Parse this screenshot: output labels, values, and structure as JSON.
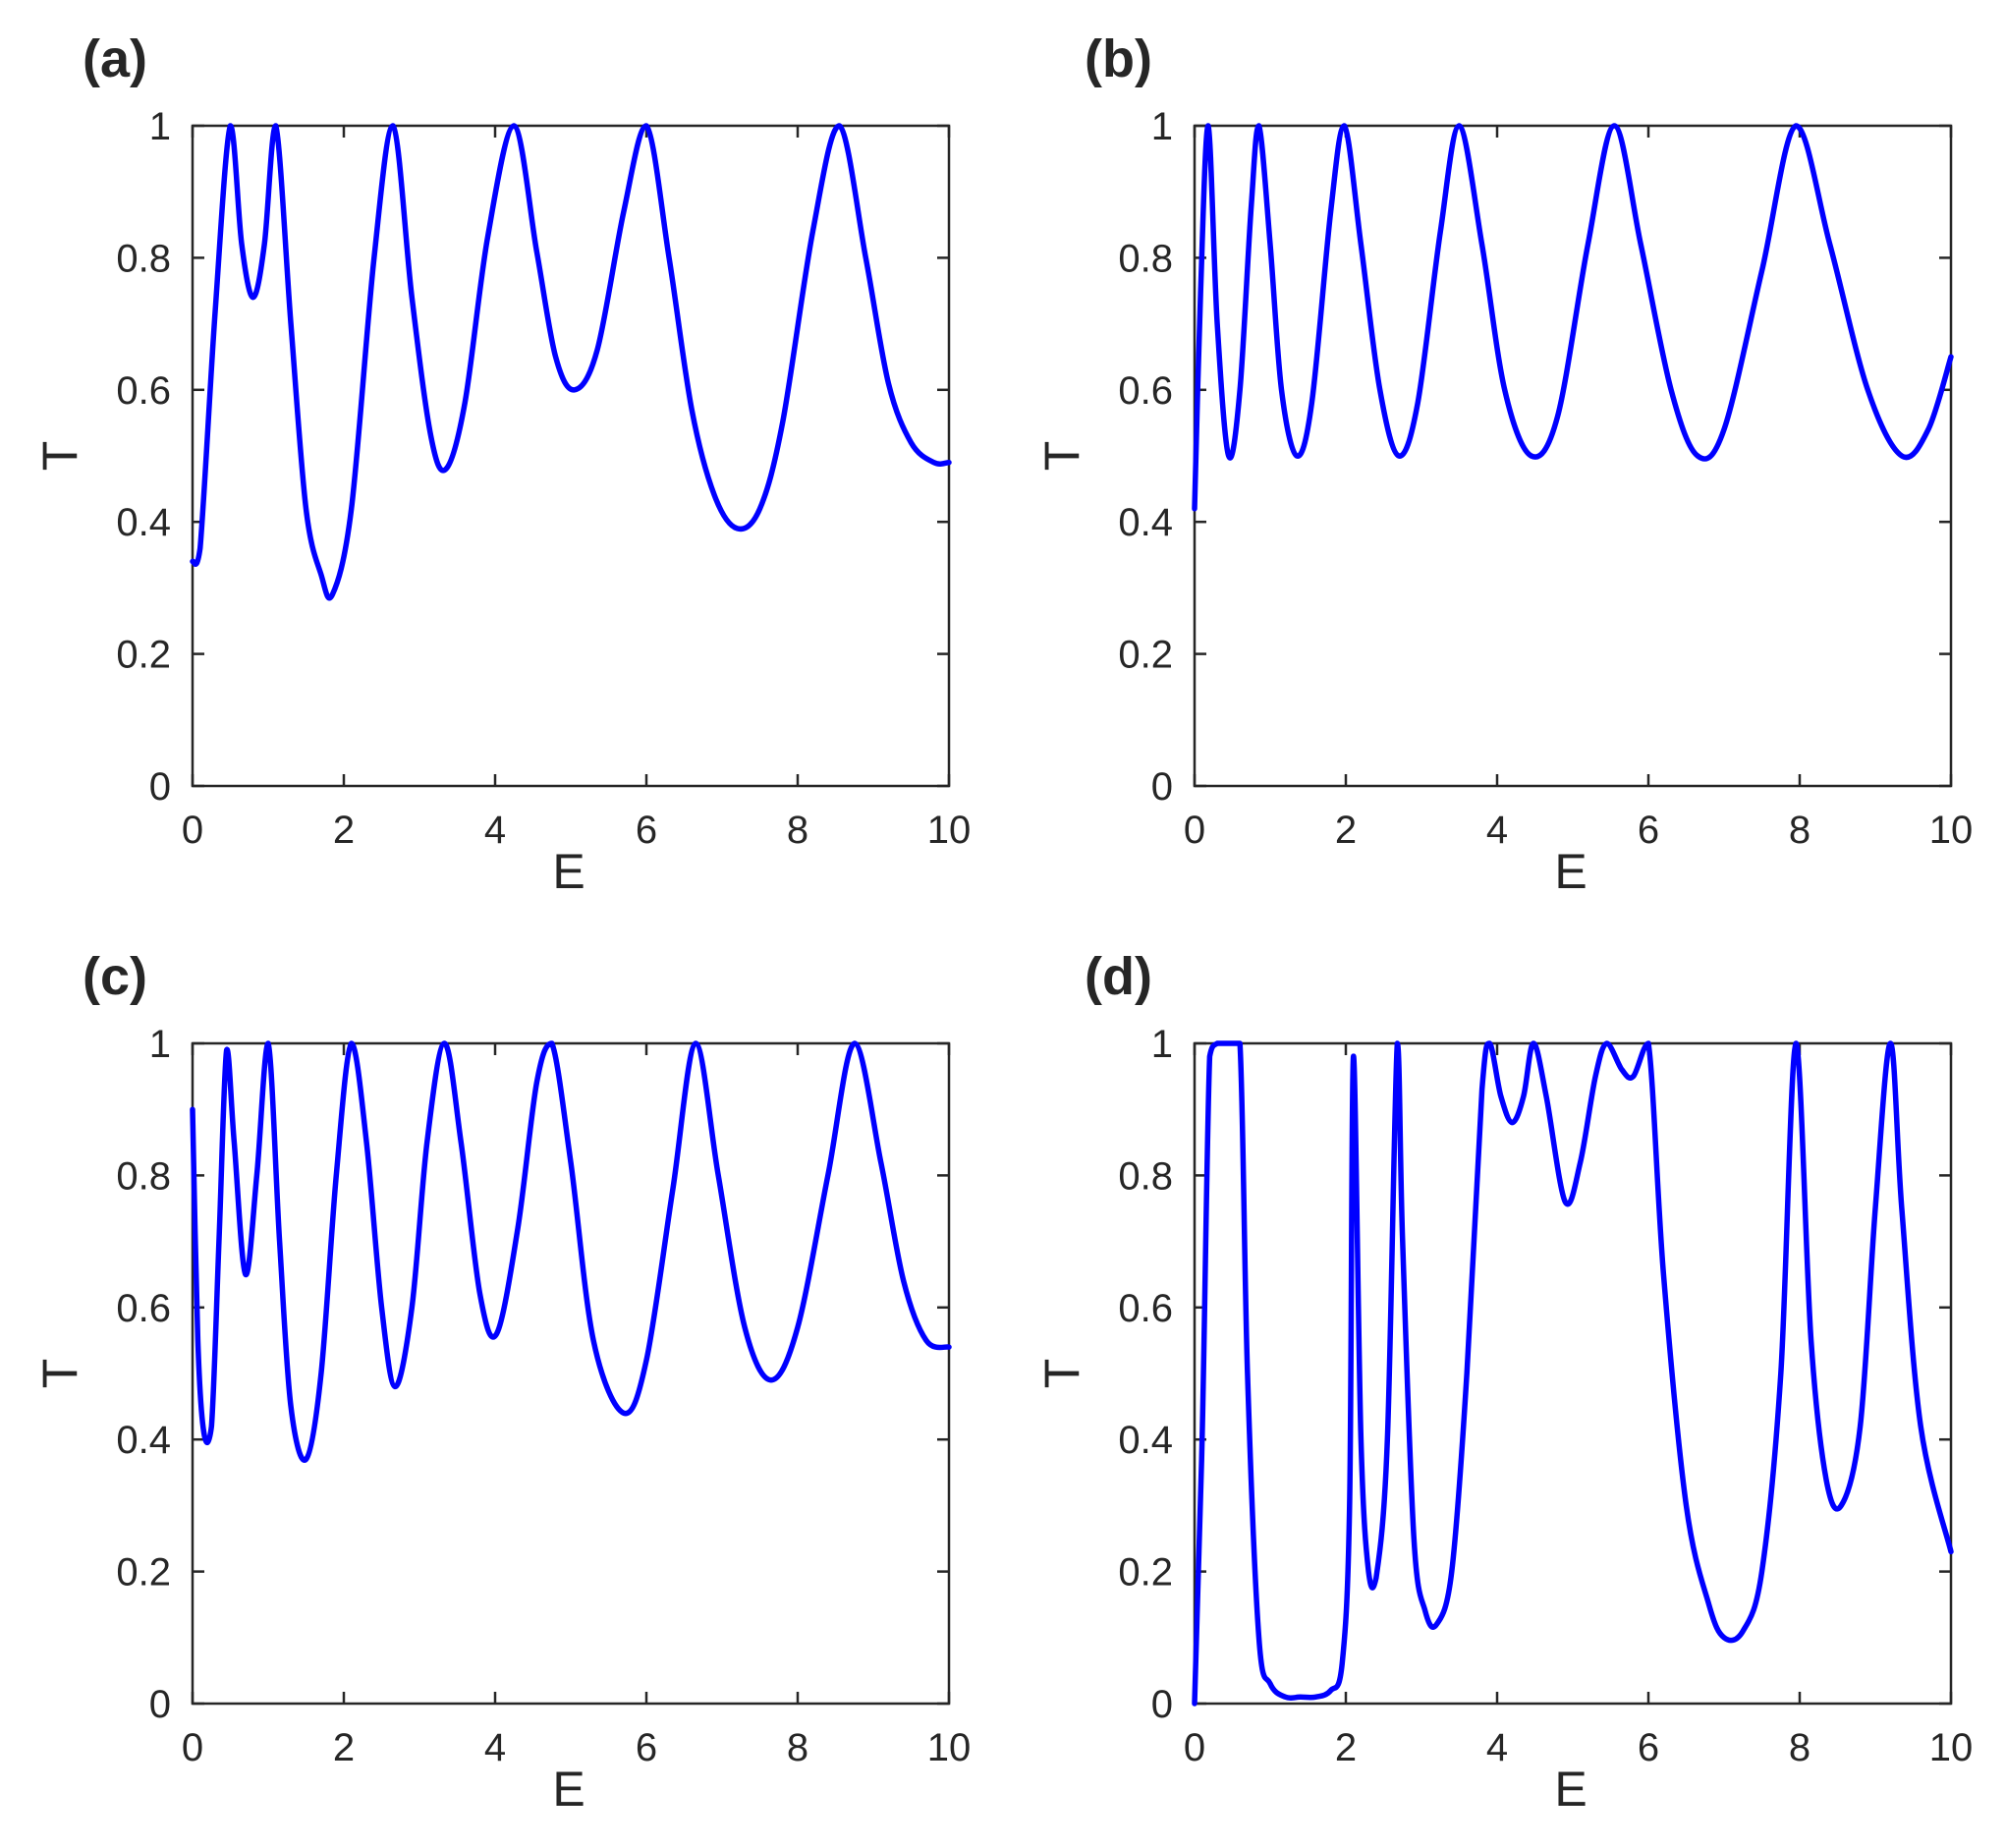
{
  "chart_data": [
    {
      "panel": "(a)",
      "type": "line",
      "xlabel": "E",
      "ylabel": "T",
      "xlim": [
        0,
        10
      ],
      "ylim": [
        0,
        1
      ],
      "xticks": [
        "0",
        "2",
        "4",
        "6",
        "8",
        "10"
      ],
      "yticks": [
        "0",
        "0.2",
        "0.4",
        "0.6",
        "0.8",
        "1"
      ],
      "grid": false,
      "color": "#0000ff",
      "series": [
        {
          "x": [
            0,
            0.1,
            0.3,
            0.5,
            0.65,
            0.8,
            0.95,
            1.1,
            1.3,
            1.5,
            1.7,
            1.85,
            2.1,
            2.4,
            2.65,
            2.9,
            3.15,
            3.35,
            3.6,
            3.9,
            4.25,
            4.55,
            4.8,
            5.05,
            5.35,
            5.7,
            6.0,
            6.3,
            6.6,
            6.9,
            7.2,
            7.5,
            7.8,
            8.2,
            8.55,
            8.9,
            9.2,
            9.5,
            9.8,
            10
          ],
          "y": [
            0.34,
            0.36,
            0.72,
            1.0,
            0.82,
            0.74,
            0.82,
            1.0,
            0.7,
            0.42,
            0.32,
            0.29,
            0.42,
            0.8,
            1.0,
            0.74,
            0.53,
            0.48,
            0.58,
            0.83,
            1.0,
            0.81,
            0.65,
            0.6,
            0.66,
            0.87,
            1.0,
            0.8,
            0.57,
            0.44,
            0.39,
            0.42,
            0.55,
            0.84,
            1.0,
            0.8,
            0.61,
            0.52,
            0.49,
            0.49
          ]
        }
      ]
    },
    {
      "panel": "(b)",
      "type": "line",
      "xlabel": "E",
      "ylabel": "T",
      "xlim": [
        0,
        10
      ],
      "ylim": [
        0,
        1
      ],
      "xticks": [
        "0",
        "2",
        "4",
        "6",
        "8",
        "10"
      ],
      "yticks": [
        "0",
        "0.2",
        "0.4",
        "0.6",
        "0.8",
        "1"
      ],
      "grid": false,
      "color": "#0000ff",
      "series": [
        {
          "x": [
            0,
            0.08,
            0.18,
            0.3,
            0.45,
            0.6,
            0.75,
            0.85,
            1.0,
            1.15,
            1.35,
            1.55,
            1.8,
            1.98,
            2.2,
            2.45,
            2.7,
            2.95,
            3.25,
            3.5,
            3.8,
            4.1,
            4.45,
            4.8,
            5.2,
            5.55,
            5.9,
            6.3,
            6.65,
            7.0,
            7.5,
            7.95,
            8.4,
            8.9,
            9.35,
            9.7,
            10
          ],
          "y": [
            0.42,
            0.75,
            1.0,
            0.7,
            0.5,
            0.6,
            0.88,
            1.0,
            0.82,
            0.6,
            0.5,
            0.58,
            0.87,
            1.0,
            0.82,
            0.6,
            0.5,
            0.58,
            0.84,
            1.0,
            0.82,
            0.6,
            0.5,
            0.56,
            0.82,
            1.0,
            0.82,
            0.6,
            0.5,
            0.54,
            0.78,
            1.0,
            0.82,
            0.6,
            0.5,
            0.54,
            0.65
          ]
        }
      ]
    },
    {
      "panel": "(c)",
      "type": "line",
      "xlabel": "E",
      "ylabel": "T",
      "xlim": [
        0,
        10
      ],
      "ylim": [
        0,
        1
      ],
      "xticks": [
        "0",
        "2",
        "4",
        "6",
        "8",
        "10"
      ],
      "yticks": [
        "0",
        "0.2",
        "0.4",
        "0.6",
        "0.8",
        "1"
      ],
      "grid": false,
      "color": "#0000ff",
      "series": [
        {
          "x": [
            0,
            0.07,
            0.15,
            0.25,
            0.35,
            0.45,
            0.55,
            0.7,
            0.85,
            1.0,
            1.15,
            1.3,
            1.5,
            1.7,
            1.9,
            2.1,
            2.3,
            2.5,
            2.68,
            2.9,
            3.1,
            3.33,
            3.55,
            3.8,
            4.02,
            4.3,
            4.55,
            4.75,
            5.0,
            5.3,
            5.7,
            6.0,
            6.35,
            6.65,
            6.95,
            7.3,
            7.65,
            8.0,
            8.4,
            8.75,
            9.1,
            9.4,
            9.7,
            10
          ],
          "y": [
            0.9,
            0.55,
            0.41,
            0.42,
            0.7,
            0.99,
            0.85,
            0.65,
            0.8,
            1.0,
            0.7,
            0.45,
            0.37,
            0.5,
            0.8,
            1.0,
            0.85,
            0.6,
            0.48,
            0.6,
            0.85,
            1.0,
            0.85,
            0.62,
            0.56,
            0.72,
            0.94,
            1.0,
            0.82,
            0.55,
            0.44,
            0.52,
            0.78,
            1.0,
            0.8,
            0.57,
            0.49,
            0.57,
            0.8,
            1.0,
            0.82,
            0.64,
            0.55,
            0.54
          ]
        }
      ]
    },
    {
      "panel": "(d)",
      "type": "line",
      "xlabel": "E",
      "ylabel": "T",
      "xlim": [
        0,
        10
      ],
      "ylim": [
        0,
        1
      ],
      "xticks": [
        "0",
        "2",
        "4",
        "6",
        "8",
        "10"
      ],
      "yticks": [
        "0",
        "0.2",
        "0.4",
        "0.6",
        "0.8",
        "1"
      ],
      "grid": false,
      "color": "#0000ff",
      "series": [
        {
          "x": [
            0,
            0.1,
            0.2,
            0.3,
            0.45,
            0.6,
            0.7,
            0.85,
            1.0,
            1.2,
            1.4,
            1.6,
            1.8,
            1.95,
            2.05,
            2.1,
            2.2,
            2.3,
            2.4,
            2.55,
            2.68,
            2.75,
            2.9,
            3.05,
            3.2,
            3.4,
            3.6,
            3.8,
            3.9,
            4.05,
            4.2,
            4.35,
            4.48,
            4.65,
            4.9,
            5.1,
            5.3,
            5.45,
            5.65,
            5.8,
            6.0,
            6.2,
            6.5,
            6.8,
            7.0,
            7.25,
            7.5,
            7.75,
            7.95,
            8.15,
            8.35,
            8.55,
            8.8,
            9.0,
            9.2,
            9.35,
            9.6,
            10
          ],
          "y": [
            0.0,
            0.4,
            0.98,
            1.0,
            1.0,
            1.0,
            0.5,
            0.1,
            0.03,
            0.01,
            0.01,
            0.01,
            0.02,
            0.06,
            0.3,
            0.98,
            0.4,
            0.2,
            0.19,
            0.4,
            1.0,
            0.7,
            0.25,
            0.14,
            0.12,
            0.2,
            0.5,
            0.93,
            1.0,
            0.92,
            0.88,
            0.92,
            1.0,
            0.92,
            0.76,
            0.82,
            0.95,
            1.0,
            0.96,
            0.95,
            1.0,
            0.65,
            0.3,
            0.15,
            0.1,
            0.11,
            0.2,
            0.5,
            1.0,
            0.55,
            0.34,
            0.3,
            0.42,
            0.75,
            1.0,
            0.75,
            0.42,
            0.23
          ]
        }
      ]
    }
  ]
}
